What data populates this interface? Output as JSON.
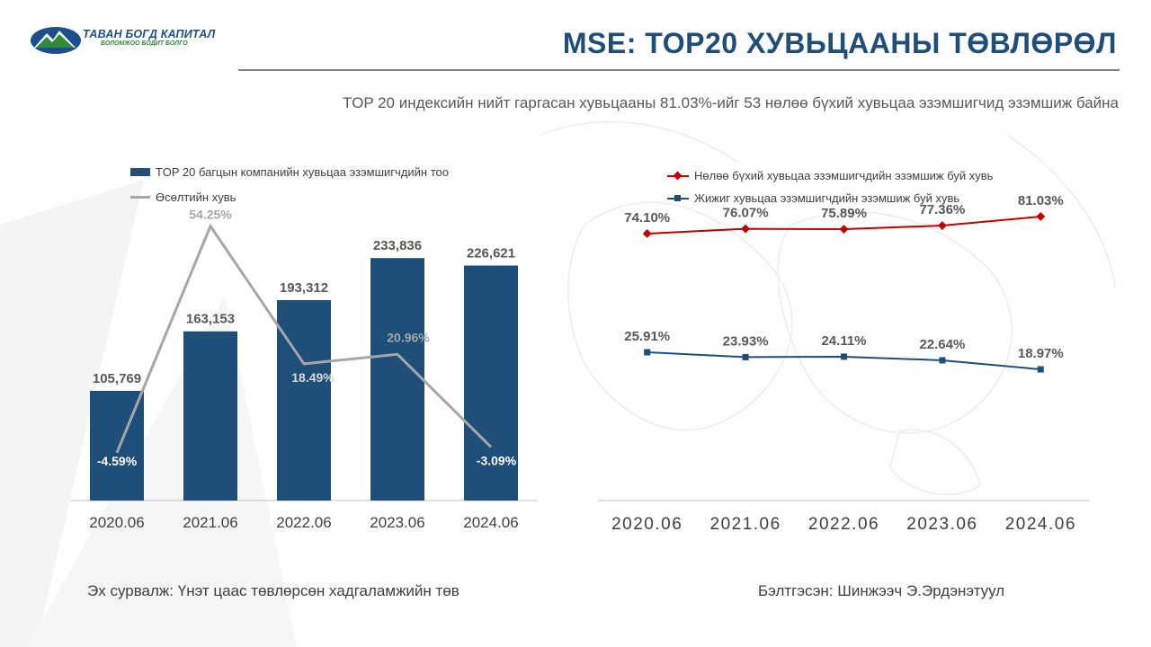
{
  "header": {
    "logo_title": "ТАВАН БОГД КАПИТАЛ",
    "logo_subtitle": "БОЛОМЖОО БОДИТ БОЛГО",
    "title": "MSE: TOP20 ХУВЬЦААНЫ ТӨВЛӨРӨЛ",
    "subtitle": "TOP 20 индексийн  нийт гаргасан хувьцааны 81.03%-ийг 53 нөлөө бүхий хувьцаа эзэмшигчид эзэмшиж байна"
  },
  "colors": {
    "bar": "#1f4e79",
    "growth_line": "#a6a6a6",
    "red_series": "#c00000",
    "blue_series": "#1f4e79"
  },
  "chart_data": [
    {
      "type": "bar",
      "categories": [
        "2020.06",
        "2021.06",
        "2022.06",
        "2023.06",
        "2024.06"
      ],
      "series": [
        {
          "name": "TOP 20 багцын компанийн хувьцаа эзэмшигчдийн тоо",
          "type": "bar",
          "values": [
            105769,
            163153,
            193312,
            233836,
            226621
          ],
          "labels": [
            "105,769",
            "163,153",
            "193,312",
            "233,836",
            "226,621"
          ]
        },
        {
          "name": "Өсөлтийн хувь",
          "type": "line",
          "values": [
            -4.59,
            54.25,
            18.49,
            20.96,
            -3.09
          ],
          "labels": [
            "-4.59%",
            "54.25%",
            "18.49%",
            "20.96%",
            "-3.09%"
          ]
        }
      ],
      "ylim": [
        0,
        260000
      ],
      "ylim_secondary": [
        -10,
        60
      ],
      "grid": false,
      "legend_placement": "top-left"
    },
    {
      "type": "line",
      "categories": [
        "2020.06",
        "2021.06",
        "2022.06",
        "2023.06",
        "2024.06"
      ],
      "series": [
        {
          "name": "Нөлөө бүхий хувьцаа эзэмшигчдийн эзэмшиж буй хувь",
          "values": [
            74.1,
            76.07,
            75.89,
            77.36,
            81.03
          ],
          "labels": [
            "74.10%",
            "76.07%",
            "75.89%",
            "77.36%",
            "81.03%"
          ]
        },
        {
          "name": "Жижиг хувьцаа эзэмшигчдийн эзэмшиж буй хувь",
          "values": [
            25.91,
            23.93,
            24.11,
            22.64,
            18.97
          ],
          "labels": [
            "25.91%",
            "23.93%",
            "24.11%",
            "22.64%",
            "18.97%"
          ]
        }
      ],
      "ylim": [
        0,
        100
      ],
      "grid": false,
      "legend_placement": "top-left"
    }
  ],
  "footer": {
    "source": "Эх сурвалж: Үнэт цаас төвлөрсөн хадгаламжийн төв",
    "prepared_by": "Бэлтгэсэн: Шинжээч Э.Эрдэнэтуул"
  }
}
